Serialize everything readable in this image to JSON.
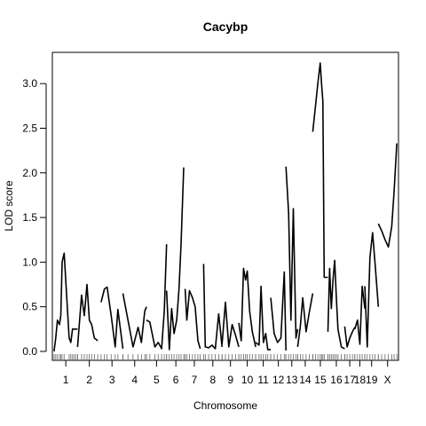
{
  "chart_data": {
    "type": "line",
    "title": "Cacybp",
    "xlabel": "Chromosome",
    "ylabel": "LOD score",
    "ylim": [
      -0.1,
      3.35
    ],
    "yticks": [
      0.0,
      0.5,
      1.0,
      1.5,
      2.0,
      2.5,
      3.0
    ],
    "ytick_labels": [
      "0.0",
      "0.5",
      "1.0",
      "1.5",
      "2.0",
      "2.5",
      "3.0"
    ],
    "line_color": "#000000",
    "grid": false,
    "chromosomes": [
      {
        "label": "1",
        "start": 0.0,
        "end": 7.0,
        "pos": [
          0.0,
          0.5,
          1.0,
          1.6,
          2.0,
          2.4,
          3.0,
          4.5,
          5.0,
          5.5,
          6.0,
          6.5,
          7.0
        ],
        "lod": [
          0.0,
          0.15,
          0.35,
          0.3,
          0.4,
          1.0,
          1.1,
          0.15,
          0.1,
          0.25,
          0.25,
          0.25,
          0.25
        ]
      },
      {
        "label": "2",
        "start": 7.0,
        "end": 14.0,
        "pos": [
          7.0,
          8.2,
          9.0,
          9.8,
          10.5,
          11.2,
          12.0,
          13.0
        ],
        "lod": [
          0.05,
          0.63,
          0.4,
          0.75,
          0.35,
          0.3,
          0.15,
          0.12
        ]
      },
      {
        "label": "3",
        "start": 14.0,
        "end": 20.5,
        "pos": [
          14.0,
          15.0,
          15.8,
          17.0,
          18.2,
          19.0,
          20.5
        ],
        "lod": [
          0.55,
          0.7,
          0.72,
          0.4,
          0.05,
          0.47,
          0.03
        ]
      },
      {
        "label": "4",
        "start": 20.5,
        "end": 27.5,
        "pos": [
          20.5,
          22.0,
          23.5,
          25.0,
          26.0,
          27.0,
          27.5
        ],
        "lod": [
          0.65,
          0.35,
          0.05,
          0.27,
          0.1,
          0.45,
          0.5
        ]
      },
      {
        "label": "5",
        "start": 27.5,
        "end": 33.5,
        "pos": [
          27.5,
          28.5,
          30.0,
          31.0,
          32.0,
          32.8,
          33.5
        ],
        "lod": [
          0.35,
          0.33,
          0.05,
          0.1,
          0.03,
          0.45,
          1.2
        ]
      },
      {
        "label": "6",
        "start": 33.5,
        "end": 39.0,
        "pos": [
          33.5,
          34.3,
          35.0,
          35.7,
          36.5,
          37.2,
          37.8,
          38.6
        ],
        "lod": [
          0.68,
          0.02,
          0.48,
          0.2,
          0.35,
          0.7,
          1.2,
          2.06
        ]
      },
      {
        "label": "7",
        "start": 39.0,
        "end": 44.5,
        "pos": [
          39.0,
          39.5,
          40.3,
          41.2,
          42.0,
          42.8,
          43.5
        ],
        "lod": [
          0.7,
          0.35,
          0.68,
          0.6,
          0.5,
          0.12,
          0.03
        ]
      },
      {
        "label": "8",
        "start": 44.5,
        "end": 50.0,
        "pos": [
          44.5,
          45.0,
          46.0,
          47.0,
          48.0,
          49.0,
          50.0
        ],
        "lod": [
          0.98,
          0.05,
          0.04,
          0.07,
          0.03,
          0.42,
          0.05
        ]
      },
      {
        "label": "9",
        "start": 50.0,
        "end": 55.0,
        "pos": [
          50.0,
          51.0,
          52.0,
          53.0,
          54.0,
          55.0
        ],
        "lod": [
          0.08,
          0.55,
          0.05,
          0.3,
          0.18,
          0.05
        ]
      },
      {
        "label": "10",
        "start": 55.0,
        "end": 60.0,
        "pos": [
          55.0,
          55.7,
          56.4,
          57.0,
          57.5,
          58.2,
          59.0,
          60.0
        ],
        "lod": [
          0.32,
          0.12,
          0.93,
          0.8,
          0.9,
          0.45,
          0.22,
          0.05
        ]
      },
      {
        "label": "11",
        "start": 60.0,
        "end": 64.5,
        "pos": [
          60.0,
          61.0,
          61.6,
          62.3,
          63.0,
          63.6,
          64.5
        ],
        "lod": [
          0.1,
          0.07,
          0.73,
          0.1,
          0.2,
          0.02,
          0.02
        ]
      },
      {
        "label": "12",
        "start": 64.5,
        "end": 69.0,
        "pos": [
          64.5,
          65.5,
          66.5,
          67.5,
          68.5,
          69.0
        ],
        "lod": [
          0.6,
          0.2,
          0.1,
          0.15,
          0.89,
          0.01
        ]
      },
      {
        "label": "13",
        "start": 69.0,
        "end": 72.5,
        "pos": [
          69.0,
          69.8,
          70.5,
          71.2,
          72.0,
          72.5
        ],
        "lod": [
          2.07,
          1.55,
          0.35,
          1.6,
          0.15,
          0.25
        ]
      },
      {
        "label": "14",
        "start": 72.5,
        "end": 77.0,
        "pos": [
          72.5,
          73.3,
          74.0,
          75.0,
          76.0,
          77.0
        ],
        "lod": [
          0.05,
          0.28,
          0.6,
          0.22,
          0.45,
          0.65
        ]
      },
      {
        "label": "15",
        "start": 77.0,
        "end": 81.5,
        "pos": [
          77.0,
          77.8,
          78.5,
          79.2,
          79.6,
          80.0,
          80.4,
          81.5
        ],
        "lod": [
          2.46,
          2.75,
          3.0,
          3.23,
          3.0,
          2.8,
          0.83,
          0.83
        ]
      },
      {
        "label": "16",
        "start": 81.5,
        "end": 86.5,
        "pos": [
          81.5,
          82.0,
          82.5,
          83.0,
          83.5,
          84.0,
          84.5,
          85.5,
          86.5
        ],
        "lod": [
          0.22,
          0.93,
          0.48,
          0.8,
          1.02,
          0.6,
          0.25,
          0.05,
          0.03
        ]
      },
      {
        "label": "17",
        "start": 86.5,
        "end": 89.5,
        "pos": [
          86.5,
          87.2,
          88.0,
          88.8,
          89.5
        ],
        "lod": [
          0.28,
          0.05,
          0.15,
          0.22,
          0.27
        ]
      },
      {
        "label": "18",
        "start": 89.5,
        "end": 92.5,
        "pos": [
          89.5,
          90.3,
          91.0,
          91.7,
          92.5
        ],
        "lod": [
          0.25,
          0.35,
          0.08,
          0.73,
          0.48
        ]
      },
      {
        "label": "19",
        "start": 92.5,
        "end": 96.5,
        "pos": [
          92.5,
          93.2,
          94.0,
          94.8,
          95.5,
          96.5
        ],
        "lod": [
          0.73,
          0.05,
          1.05,
          1.33,
          1.0,
          0.5
        ]
      },
      {
        "label": "X",
        "start": 96.5,
        "end": 102.0,
        "pos": [
          96.5,
          97.5,
          98.5,
          99.5,
          100.5,
          101.2,
          102.0
        ],
        "lod": [
          1.43,
          1.35,
          1.25,
          1.17,
          1.4,
          1.8,
          2.33
        ]
      }
    ],
    "xlim": [
      -0.5,
      102.5
    ]
  }
}
